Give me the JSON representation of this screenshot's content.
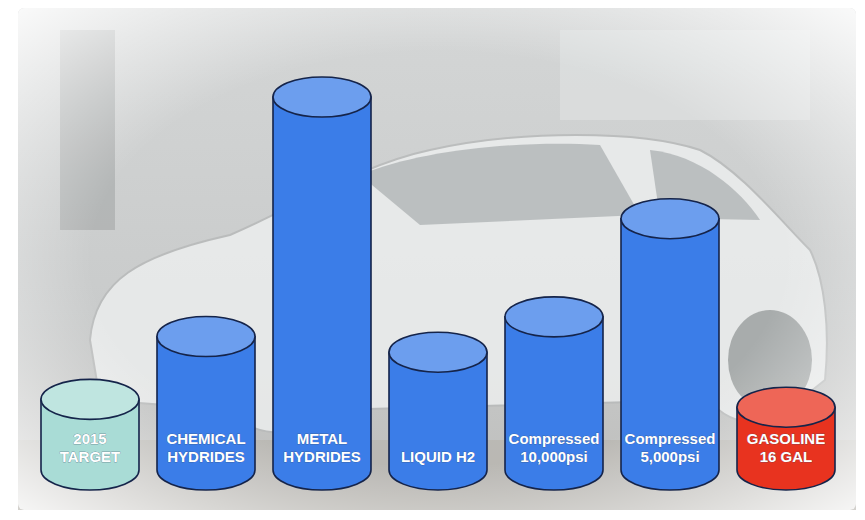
{
  "chart_data": {
    "type": "bar",
    "categories": [
      "2015 TARGET",
      "CHEMICAL HYDRIDES",
      "METAL HYDRIDES",
      "LIQUID H2",
      "Compressed 10,000psi",
      "Compressed 5,000psi",
      "GASOLINE 16 GAL"
    ],
    "values": [
      18,
      34,
      95,
      30,
      39,
      64,
      16
    ],
    "colors": [
      "#a9dcd6",
      "#3b7de8",
      "#3b7de8",
      "#3b7de8",
      "#3b7de8",
      "#3b7de8",
      "#e8331f"
    ],
    "tick_labels": false
  }
}
